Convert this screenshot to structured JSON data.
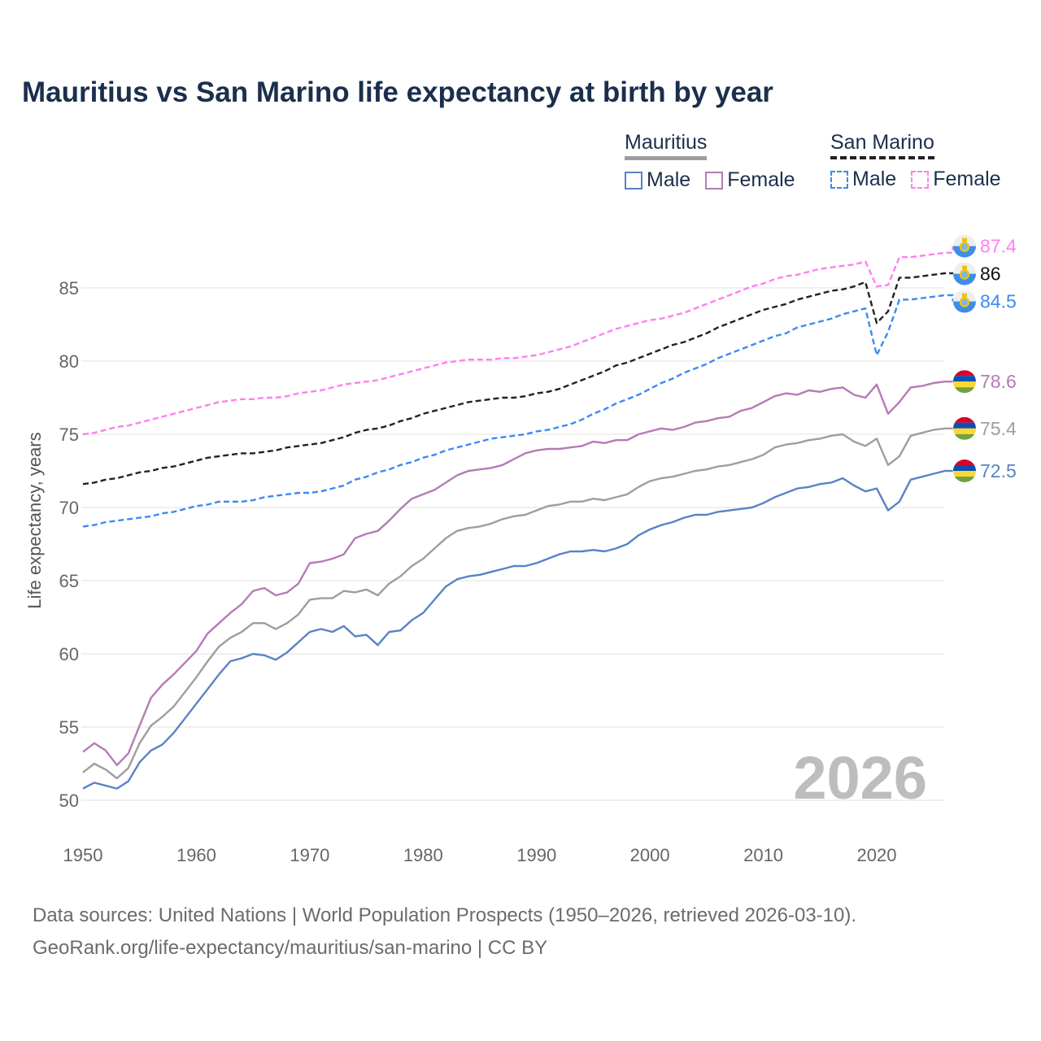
{
  "title": "Mauritius vs San Marino life expectancy at birth by year",
  "legend": {
    "groups": [
      {
        "label": "Mauritius",
        "items": [
          {
            "label": "Male",
            "color": "#5a82c6"
          },
          {
            "label": "Female",
            "color": "#b47bb6"
          }
        ]
      },
      {
        "label": "San Marino",
        "items": [
          {
            "label": "Male",
            "color": "#3b8af5"
          },
          {
            "label": "Female",
            "color": "#ff7ff0"
          }
        ]
      }
    ]
  },
  "year_watermark": "2026",
  "footer": {
    "line1": "Data sources: United Nations | World Population Prospects (1950–2026, retrieved 2026-03-10).",
    "line2": "GeoRank.org/life-expectancy/mauritius/san-marino | CC BY"
  },
  "chart_data": {
    "type": "line",
    "title": "Mauritius vs San Marino life expectancy at birth by year",
    "xlabel": "",
    "ylabel": "Life expectancy, years",
    "xlim": [
      1950,
      2026
    ],
    "ylim": [
      50,
      89
    ],
    "x_start": 1950,
    "x_ticks": [
      1950,
      1960,
      1970,
      1980,
      1990,
      2000,
      2010,
      2020
    ],
    "y_ticks": [
      50,
      55,
      60,
      65,
      70,
      75,
      80,
      85
    ],
    "grid": true,
    "series": [
      {
        "name": "San Marino Female",
        "country": "San Marino",
        "color": "#ff7ff0",
        "dashed": true,
        "end_label": "87.4",
        "values": [
          75.0,
          75.1,
          75.3,
          75.5,
          75.6,
          75.8,
          76.0,
          76.2,
          76.4,
          76.6,
          76.8,
          77.0,
          77.2,
          77.3,
          77.4,
          77.4,
          77.5,
          77.5,
          77.6,
          77.8,
          77.9,
          78.0,
          78.2,
          78.4,
          78.5,
          78.6,
          78.7,
          78.9,
          79.1,
          79.3,
          79.5,
          79.7,
          79.9,
          80.0,
          80.1,
          80.1,
          80.1,
          80.2,
          80.2,
          80.3,
          80.4,
          80.6,
          80.8,
          81.0,
          81.3,
          81.6,
          81.9,
          82.2,
          82.4,
          82.6,
          82.8,
          82.9,
          83.1,
          83.3,
          83.6,
          83.9,
          84.2,
          84.5,
          84.8,
          85.1,
          85.3,
          85.6,
          85.8,
          85.9,
          86.1,
          86.3,
          86.4,
          86.5,
          86.6,
          86.8,
          85.1,
          85.2,
          87.1,
          87.1,
          87.2,
          87.3,
          87.4
        ]
      },
      {
        "name": "San Marino",
        "country": "San Marino",
        "color": "#222222",
        "dashed": true,
        "end_label": "86",
        "values": [
          71.6,
          71.7,
          71.9,
          72.0,
          72.2,
          72.4,
          72.5,
          72.7,
          72.8,
          73.0,
          73.2,
          73.4,
          73.5,
          73.6,
          73.7,
          73.7,
          73.8,
          73.9,
          74.1,
          74.2,
          74.3,
          74.4,
          74.6,
          74.8,
          75.1,
          75.3,
          75.4,
          75.6,
          75.9,
          76.1,
          76.4,
          76.6,
          76.8,
          77.0,
          77.2,
          77.3,
          77.4,
          77.5,
          77.5,
          77.6,
          77.8,
          77.9,
          78.1,
          78.4,
          78.7,
          79.0,
          79.3,
          79.7,
          79.9,
          80.2,
          80.5,
          80.8,
          81.1,
          81.3,
          81.6,
          81.9,
          82.3,
          82.6,
          82.9,
          83.2,
          83.5,
          83.7,
          83.9,
          84.2,
          84.4,
          84.6,
          84.8,
          84.9,
          85.1,
          85.4,
          82.6,
          83.4,
          85.7,
          85.7,
          85.8,
          85.9,
          86.0
        ]
      },
      {
        "name": "San Marino Male",
        "country": "San Marino",
        "color": "#3b8af5",
        "dashed": true,
        "end_label": "84.5",
        "values": [
          68.7,
          68.8,
          69.0,
          69.1,
          69.2,
          69.3,
          69.4,
          69.6,
          69.7,
          69.9,
          70.1,
          70.2,
          70.4,
          70.4,
          70.4,
          70.5,
          70.7,
          70.8,
          70.9,
          71.0,
          71.0,
          71.1,
          71.3,
          71.5,
          71.9,
          72.1,
          72.4,
          72.6,
          72.9,
          73.1,
          73.4,
          73.6,
          73.9,
          74.1,
          74.3,
          74.5,
          74.7,
          74.8,
          74.9,
          75.0,
          75.2,
          75.3,
          75.5,
          75.7,
          76.0,
          76.4,
          76.7,
          77.1,
          77.4,
          77.7,
          78.1,
          78.5,
          78.8,
          79.2,
          79.5,
          79.8,
          80.2,
          80.5,
          80.8,
          81.1,
          81.4,
          81.7,
          81.9,
          82.3,
          82.5,
          82.7,
          82.9,
          83.2,
          83.4,
          83.6,
          80.4,
          82.0,
          84.2,
          84.2,
          84.3,
          84.4,
          84.5
        ]
      },
      {
        "name": "Mauritius Female",
        "country": "Mauritius",
        "color": "#b47bb6",
        "dashed": false,
        "end_label": "78.6",
        "values": [
          53.3,
          53.9,
          53.4,
          52.4,
          53.2,
          55.1,
          57.0,
          57.9,
          58.6,
          59.4,
          60.2,
          61.4,
          62.1,
          62.8,
          63.4,
          64.3,
          64.5,
          64.0,
          64.2,
          64.8,
          66.2,
          66.3,
          66.5,
          66.8,
          67.9,
          68.2,
          68.4,
          69.1,
          69.9,
          70.6,
          70.9,
          71.2,
          71.7,
          72.2,
          72.5,
          72.6,
          72.7,
          72.9,
          73.3,
          73.7,
          73.9,
          74.0,
          74.0,
          74.1,
          74.2,
          74.5,
          74.4,
          74.6,
          74.6,
          75.0,
          75.2,
          75.4,
          75.3,
          75.5,
          75.8,
          75.9,
          76.1,
          76.2,
          76.6,
          76.8,
          77.2,
          77.6,
          77.8,
          77.7,
          78.0,
          77.9,
          78.1,
          78.2,
          77.7,
          77.5,
          78.4,
          76.4,
          77.2,
          78.2,
          78.3,
          78.5,
          78.6
        ]
      },
      {
        "name": "Mauritius",
        "country": "Mauritius",
        "color": "#9e9e9e",
        "dashed": false,
        "end_label": "75.4",
        "values": [
          51.9,
          52.5,
          52.1,
          51.5,
          52.2,
          53.9,
          55.1,
          55.7,
          56.4,
          57.4,
          58.4,
          59.5,
          60.5,
          61.1,
          61.5,
          62.1,
          62.1,
          61.7,
          62.1,
          62.7,
          63.7,
          63.8,
          63.8,
          64.3,
          64.2,
          64.4,
          64.0,
          64.8,
          65.3,
          66.0,
          66.5,
          67.2,
          67.9,
          68.4,
          68.6,
          68.7,
          68.9,
          69.2,
          69.4,
          69.5,
          69.8,
          70.1,
          70.2,
          70.4,
          70.4,
          70.6,
          70.5,
          70.7,
          70.9,
          71.4,
          71.8,
          72.0,
          72.1,
          72.3,
          72.5,
          72.6,
          72.8,
          72.9,
          73.1,
          73.3,
          73.6,
          74.1,
          74.3,
          74.4,
          74.6,
          74.7,
          74.9,
          75.0,
          74.5,
          74.2,
          74.7,
          72.9,
          73.5,
          74.9,
          75.1,
          75.3,
          75.4
        ]
      },
      {
        "name": "Mauritius Male",
        "country": "Mauritius",
        "color": "#5a82c6",
        "dashed": false,
        "end_label": "72.5",
        "values": [
          50.8,
          51.2,
          51.0,
          50.8,
          51.3,
          52.6,
          53.4,
          53.8,
          54.6,
          55.6,
          56.6,
          57.6,
          58.6,
          59.5,
          59.7,
          60.0,
          59.9,
          59.6,
          60.1,
          60.8,
          61.5,
          61.7,
          61.5,
          61.9,
          61.2,
          61.3,
          60.6,
          61.5,
          61.6,
          62.3,
          62.8,
          63.7,
          64.6,
          65.1,
          65.3,
          65.4,
          65.6,
          65.8,
          66.0,
          66.0,
          66.2,
          66.5,
          66.8,
          67.0,
          67.0,
          67.1,
          67.0,
          67.2,
          67.5,
          68.1,
          68.5,
          68.8,
          69.0,
          69.3,
          69.5,
          69.5,
          69.7,
          69.8,
          69.9,
          70.0,
          70.3,
          70.7,
          71.0,
          71.3,
          71.4,
          71.6,
          71.7,
          72.0,
          71.5,
          71.1,
          71.3,
          69.8,
          70.4,
          71.9,
          72.1,
          72.3,
          72.5
        ]
      }
    ]
  }
}
